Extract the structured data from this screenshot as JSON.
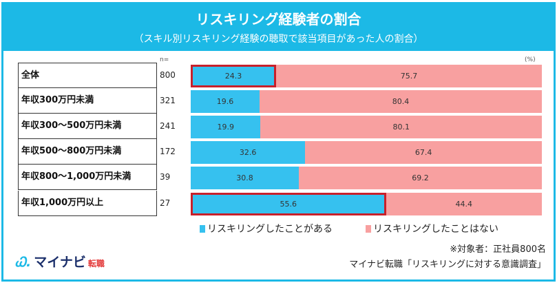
{
  "header": {
    "title": "リスキリング経験者の割合",
    "subtitle": "（スキル別リスキリング経験の聴取で該当項目があった人の割合）"
  },
  "n_label": "n=",
  "unit_label": "(%)",
  "chart_data": {
    "type": "bar",
    "stacked": true,
    "orientation": "horizontal",
    "xlim": [
      0,
      100
    ],
    "title": "リスキリング経験者の割合",
    "categories": [
      "全体",
      "年収300万円未満",
      "年収300～500万円未満",
      "年収500～800万円未満",
      "年収800～1,000万円未満",
      "年収1,000万円以上"
    ],
    "n": [
      "800",
      "321",
      "241",
      "172",
      "39",
      "27"
    ],
    "highlighted": [
      "全体",
      "年収1,000万円以上"
    ],
    "series": [
      {
        "name": "リスキリングしたことがある",
        "color": "#36c1ef",
        "values": [
          24.3,
          19.6,
          19.9,
          32.6,
          30.8,
          55.6
        ]
      },
      {
        "name": "リスキリングしたことはない",
        "color": "#f8a0a0",
        "values": [
          75.7,
          80.4,
          80.1,
          67.4,
          69.2,
          44.4
        ]
      }
    ],
    "legend": "bottom"
  },
  "logo": {
    "brand": "マイナビ",
    "sub": "転職"
  },
  "footer": {
    "target": "※対象者：正社員800名",
    "source": "マイナビ転職「リスキリングに対する意識調査」"
  }
}
